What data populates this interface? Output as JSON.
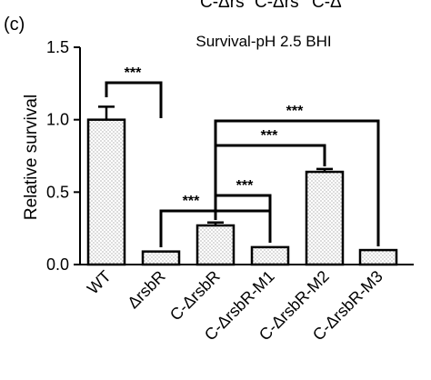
{
  "panel_label": "(c)",
  "cropped_top_labels": [
    "C-Δrs",
    "C-Δrs",
    "C-Δ"
  ],
  "chart_data": {
    "type": "bar",
    "title": "Survival-pH 2.5 BHI",
    "xlabel": "",
    "ylabel": "Relative survival",
    "categories": [
      "WT",
      "ΔrsbR",
      "C-ΔrsbR",
      "C-ΔrsbR-M1",
      "C-ΔrsbR-M2",
      "C-ΔrsbR-M3"
    ],
    "values": [
      1.0,
      0.09,
      0.27,
      0.12,
      0.64,
      0.1
    ],
    "errors": [
      0.09,
      0.0,
      0.02,
      0.0,
      0.02,
      0.0
    ],
    "ylim": [
      0,
      1.5
    ],
    "yticks": [
      0.0,
      0.5,
      1.0,
      1.5
    ],
    "ytick_labels": [
      "0.0",
      "0.5",
      "1.0",
      "1.5"
    ],
    "bar_fill": "dotted",
    "significance": [
      {
        "from": "WT",
        "to": "ΔrsbR",
        "label": "***"
      },
      {
        "from": "C-ΔrsbR",
        "to": "C-ΔrsbR-M3",
        "label": "***"
      },
      {
        "from": "C-ΔrsbR",
        "to": "C-ΔrsbR-M2",
        "label": "***"
      },
      {
        "from": "C-ΔrsbR",
        "to": "C-ΔrsbR-M1",
        "label": "***"
      },
      {
        "from": "ΔrsbR",
        "to": "C-ΔrsbR-M1",
        "label": "***"
      }
    ]
  }
}
